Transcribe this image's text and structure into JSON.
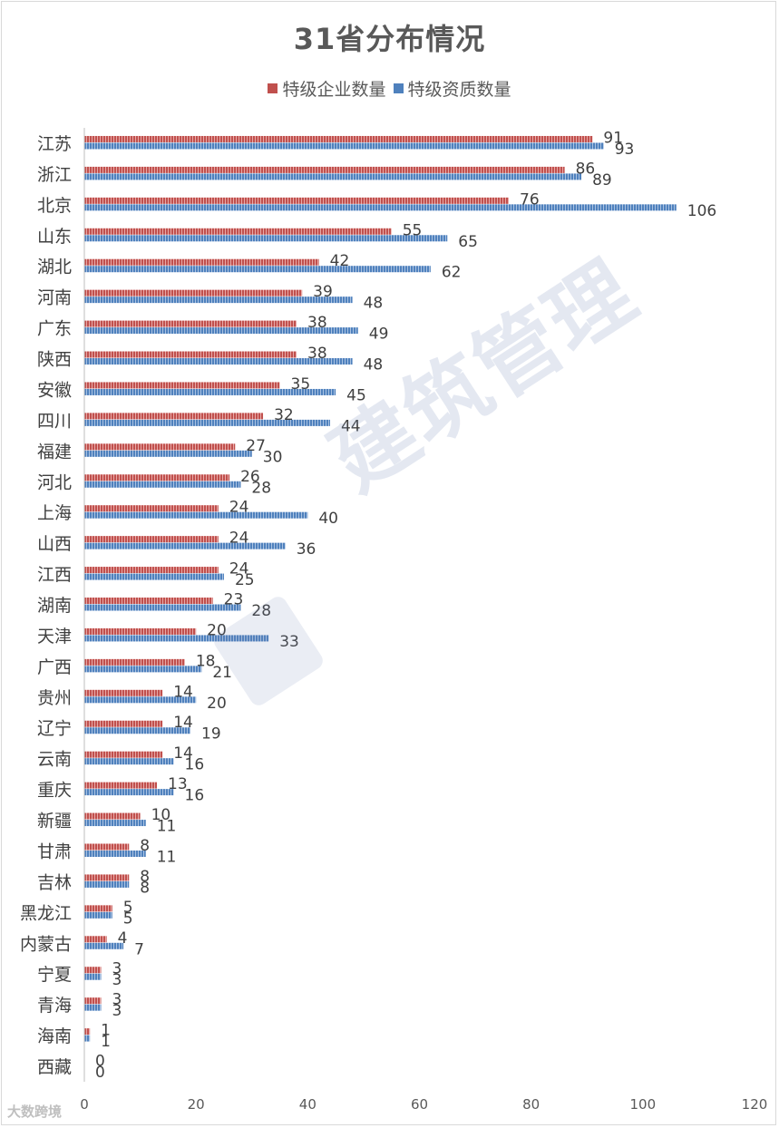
{
  "chart_data": {
    "type": "bar",
    "orientation": "horizontal",
    "title": "31省分布情况",
    "categories": [
      "江苏",
      "浙江",
      "北京",
      "山东",
      "湖北",
      "河南",
      "广东",
      "陕西",
      "安徽",
      "四川",
      "福建",
      "河北",
      "上海",
      "山西",
      "江西",
      "湖南",
      "天津",
      "广西",
      "贵州",
      "辽宁",
      "云南",
      "重庆",
      "新疆",
      "甘肃",
      "吉林",
      "黑龙江",
      "内蒙古",
      "宁夏",
      "青海",
      "海南",
      "西藏"
    ],
    "series": [
      {
        "name": "特级企业数量",
        "color": "#c0504d",
        "values": [
          91,
          86,
          76,
          55,
          42,
          39,
          38,
          38,
          35,
          32,
          27,
          26,
          24,
          24,
          24,
          23,
          20,
          18,
          14,
          14,
          14,
          13,
          10,
          8,
          8,
          5,
          4,
          3,
          3,
          1,
          0
        ]
      },
      {
        "name": "特级资质数量",
        "color": "#4f81bd",
        "values": [
          93,
          89,
          106,
          65,
          62,
          48,
          49,
          48,
          45,
          44,
          30,
          28,
          40,
          36,
          25,
          28,
          33,
          21,
          20,
          19,
          16,
          16,
          11,
          11,
          8,
          5,
          7,
          3,
          3,
          1,
          0
        ]
      }
    ],
    "xlim": [
      0,
      120
    ],
    "xticks": [
      0,
      20,
      40,
      60,
      80,
      100,
      120
    ],
    "legend_position": "top",
    "grid": false,
    "data_labels": true
  },
  "watermark": {
    "text": "建筑管理"
  },
  "corner_mark": {
    "text": "大数跨境"
  }
}
